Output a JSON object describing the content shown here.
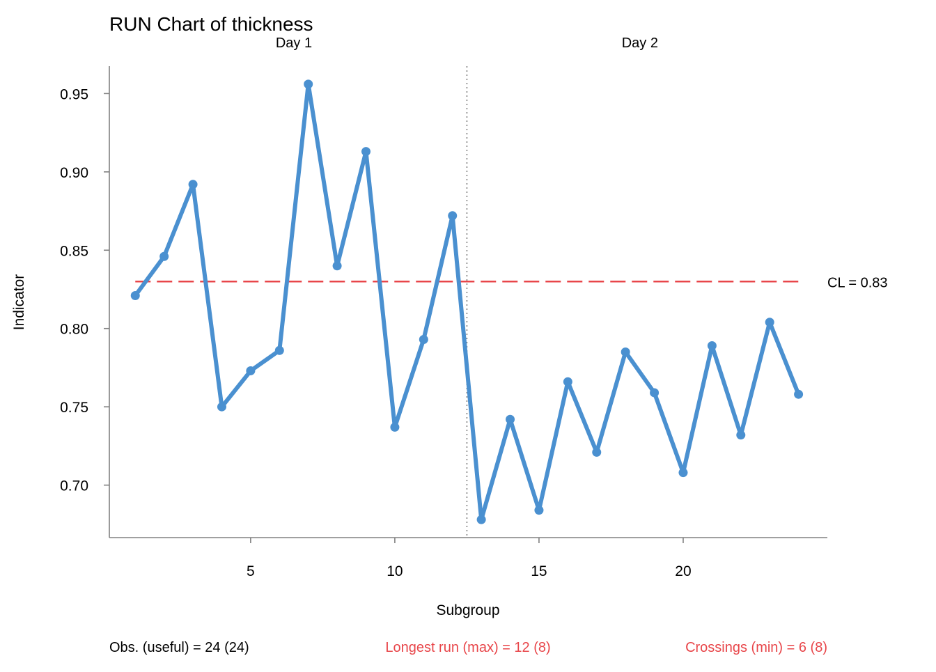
{
  "chart_data": {
    "type": "line",
    "title": "RUN Chart of thickness",
    "xlabel": "Subgroup",
    "ylabel": "Indicator",
    "x": [
      1,
      2,
      3,
      4,
      5,
      6,
      7,
      8,
      9,
      10,
      11,
      12,
      13,
      14,
      15,
      16,
      17,
      18,
      19,
      20,
      21,
      22,
      23,
      24
    ],
    "series": [
      {
        "values": [
          0.821,
          0.846,
          0.892,
          0.75,
          0.773,
          0.786,
          0.956,
          0.84,
          0.913,
          0.737,
          0.793,
          0.872,
          0.678,
          0.742,
          0.684,
          0.766,
          0.721,
          0.785,
          0.759,
          0.708,
          0.789,
          0.732,
          0.804,
          0.758
        ]
      }
    ],
    "xlim": [
      0.1,
      25.0
    ],
    "ylim": [
      0.6665,
      0.9675
    ],
    "xticks": [
      5,
      10,
      15,
      20
    ],
    "xtick_labels": [
      "5",
      "10",
      "15",
      "20"
    ],
    "yticks": [
      0.7,
      0.75,
      0.8,
      0.85,
      0.9,
      0.95
    ],
    "ytick_labels": [
      "0.70",
      "0.75",
      "0.80",
      "0.85",
      "0.90",
      "0.95"
    ],
    "center_line": {
      "value": 0.83,
      "label": "CL = 0.83",
      "x_range": [
        1,
        24
      ]
    },
    "phase_divider": 12.5,
    "phases": [
      {
        "label": "Day 1",
        "center_x": 6.5
      },
      {
        "label": "Day 2",
        "center_x": 18.5
      }
    ],
    "grid": false,
    "colors": {
      "series": "#4a90d0",
      "center_line": "#e8464a",
      "divider": "#808080",
      "axis": "#808080",
      "text": "#000000",
      "alert": "#e8464a"
    },
    "footer": {
      "obs": "Obs. (useful) = 24 (24)",
      "longest_run": "Longest run (max) = 12 (8)",
      "crossings": "Crossings (min) = 6 (8)"
    }
  }
}
